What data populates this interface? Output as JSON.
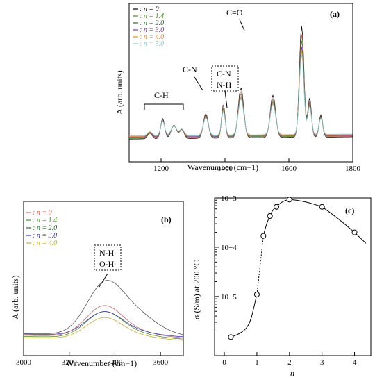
{
  "panels": {
    "a": {
      "tag": "(a)"
    },
    "b": {
      "tag": "(b)"
    },
    "c": {
      "tag": "(c)"
    }
  },
  "chart_data": [
    {
      "id": "a",
      "type": "line",
      "xlabel": "Wavenumber  (cm−1)",
      "ylabel": "A  (arb. units)",
      "xlim": [
        1100,
        1800
      ],
      "xticks": [
        1200,
        1400,
        1600,
        1800
      ],
      "legend_placement": "top-left",
      "legend": [
        {
          "label": ": n = 0",
          "color": "#000000"
        },
        {
          "label": ": n = 1.4",
          "color": "#4a8a2a"
        },
        {
          "label": ": n = 2.0",
          "color": "#2a6a2a"
        },
        {
          "label": ": n = 3.0",
          "color": "#7a3aa0"
        },
        {
          "label": ": n = 4.0",
          "color": "#e08a30"
        },
        {
          "label": ": n = 5.0",
          "color": "#7ad0d0"
        }
      ],
      "annotations": [
        "C=O",
        "C-N",
        "C-N",
        "N-H",
        "C-H"
      ],
      "series": [
        {
          "color": "#000000",
          "scale": 1.0
        },
        {
          "color": "#c86464",
          "scale": 0.92
        },
        {
          "color": "#4a8a2a",
          "scale": 0.86
        },
        {
          "color": "#7a3aa0",
          "scale": 0.8
        },
        {
          "color": "#e08a30",
          "scale": 0.76
        },
        {
          "color": "#7ad0d0",
          "scale": 0.72
        }
      ]
    },
    {
      "id": "b",
      "type": "line",
      "xlabel": "Wavenumber  (cm−1)",
      "ylabel": "A  (arb. units)",
      "xlim": [
        3000,
        3700
      ],
      "xticks": [
        3000,
        3200,
        3400,
        3600
      ],
      "legend_placement": "top-left",
      "legend": [
        {
          "label": ": n = 0",
          "color": "#c86464"
        },
        {
          "label": ": n = 1.4",
          "color": "#4a8a2a"
        },
        {
          "label": ": n = 2.0",
          "color": "#2a6a2a"
        },
        {
          "label": ": n = 3.0",
          "color": "#3a3ab0"
        },
        {
          "label": ": n = 4.0",
          "color": "#c0b030"
        }
      ],
      "annotations": [
        "N-H",
        "O-H"
      ],
      "series": [
        {
          "color": "#555555",
          "peak": 1.0,
          "base": 0.15
        },
        {
          "color": "#c86464",
          "peak": 0.65,
          "base": 0.12
        },
        {
          "color": "#4a8a2a",
          "peak": 0.55,
          "base": 0.1
        },
        {
          "color": "#3a3ab0",
          "peak": 0.5,
          "base": 0.14
        },
        {
          "color": "#c0b030",
          "peak": 0.45,
          "base": 0.08
        }
      ]
    },
    {
      "id": "c",
      "type": "scatter",
      "xlabel": "n",
      "ylabel": "σ  (S/m)  at 200 °C",
      "xlim": [
        -0.3,
        4.5
      ],
      "ylim_log10": [
        -6.2,
        -3
      ],
      "yscale": "log",
      "xticks": [
        0,
        1,
        2,
        3,
        4
      ],
      "yticks": [
        "10−5",
        "10−4",
        "10−3"
      ],
      "x": [
        0.2,
        1.0,
        1.2,
        1.4,
        1.6,
        2.0,
        3.0,
        4.0
      ],
      "y": [
        1.5e-06,
        1.1e-05,
        0.00017,
        0.00043,
        0.00066,
        0.00093,
        0.00066,
        0.0002
      ]
    }
  ]
}
